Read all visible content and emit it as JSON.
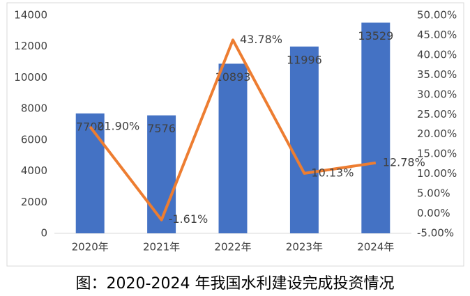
{
  "chart_data": {
    "type": "combo",
    "caption": "图：2020-2024 年我国水利建设完成投资情况",
    "categories": [
      "2020年",
      "2021年",
      "2022年",
      "2023年",
      "2024年"
    ],
    "series": [
      {
        "type": "bar",
        "color": "#4472c4",
        "values": [
          7700,
          7576,
          10893,
          11996,
          13529
        ]
      },
      {
        "type": "line",
        "axis": "y2",
        "color": "#ed7d31",
        "values": [
          21.9,
          -1.61,
          43.78,
          10.13,
          12.78
        ],
        "value_labels": [
          "21.90%",
          "-1.61%",
          "43.78%",
          "10.13%",
          "12.78%"
        ]
      }
    ],
    "ylim": [
      0,
      14000
    ],
    "yticks": [
      0,
      2000,
      4000,
      6000,
      8000,
      10000,
      12000,
      14000
    ],
    "y2lim": [
      -5,
      50
    ],
    "y2ticks": [
      {
        "value": -5,
        "label": "-5.00%"
      },
      {
        "value": 0,
        "label": "0.00%"
      },
      {
        "value": 5,
        "label": "5.00%"
      },
      {
        "value": 10,
        "label": "10.00%"
      },
      {
        "value": 15,
        "label": "15.00%"
      },
      {
        "value": 20,
        "label": "20.00%"
      },
      {
        "value": 25,
        "label": "25.00%"
      },
      {
        "value": 30,
        "label": "30.00%"
      },
      {
        "value": 35,
        "label": "35.00%"
      },
      {
        "value": 40,
        "label": "40.00%"
      },
      {
        "value": 45,
        "label": "45.00%"
      },
      {
        "value": 50,
        "label": "50.00%"
      }
    ],
    "grid": false
  }
}
